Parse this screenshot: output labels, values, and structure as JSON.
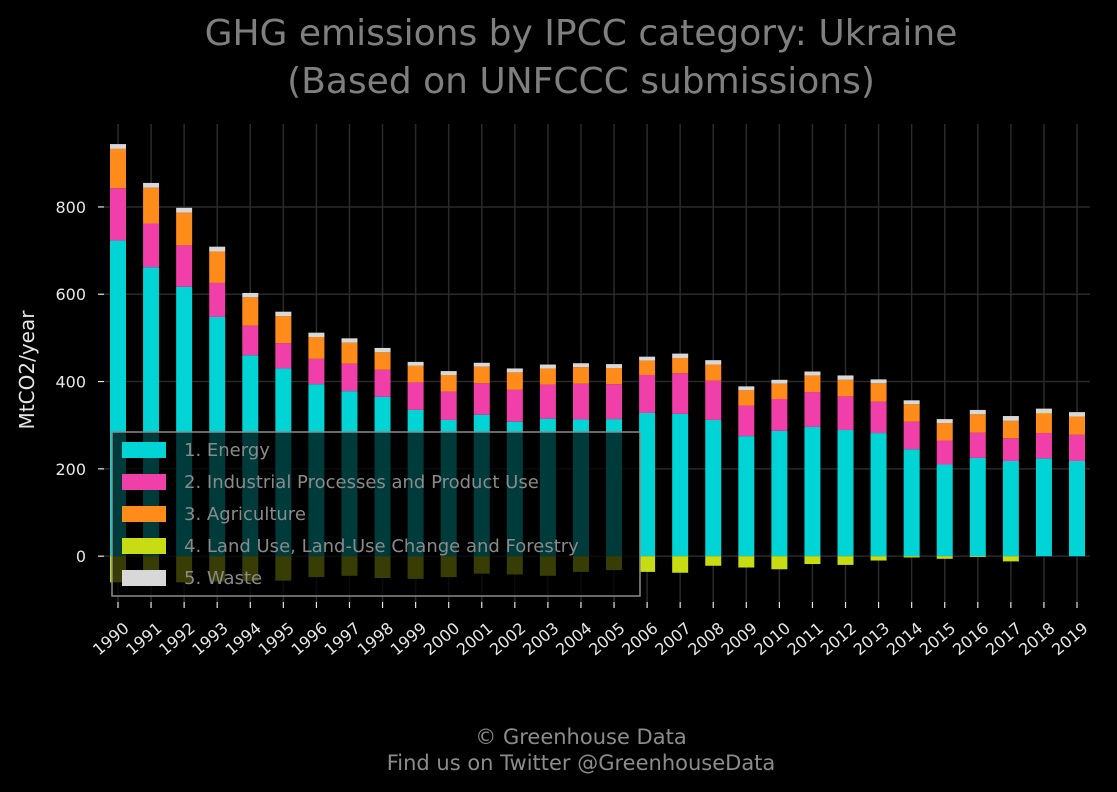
{
  "chart_data": {
    "type": "bar",
    "stacked": true,
    "title": "GHG emissions by IPCC category: Ukraine",
    "subtitle": "(Based on UNFCCC submissions)",
    "ylabel": "MtCO2/year",
    "xlabel": "",
    "ylim": [
      -105,
      990
    ],
    "yticks": [
      0,
      200,
      400,
      600,
      800
    ],
    "grid": true,
    "legend_position": "lower-left",
    "categories": [
      "1990",
      "1991",
      "1992",
      "1993",
      "1994",
      "1995",
      "1996",
      "1997",
      "1998",
      "1999",
      "2000",
      "2001",
      "2002",
      "2003",
      "2004",
      "2005",
      "2006",
      "2007",
      "2008",
      "2009",
      "2010",
      "2011",
      "2012",
      "2013",
      "2014",
      "2015",
      "2016",
      "2017",
      "2018",
      "2019"
    ],
    "series": [
      {
        "name": "1. Energy",
        "color": "#00d4d4",
        "values": [
          723,
          662,
          617,
          548,
          460,
          430,
          394,
          378,
          365,
          335,
          312,
          324,
          308,
          315,
          313,
          314,
          328,
          326,
          312,
          275,
          287,
          296,
          289,
          282,
          245,
          210,
          225,
          218,
          224,
          218
        ]
      },
      {
        "name": "2. Industrial Processes and Product Use",
        "color": "#f03fa8",
        "values": [
          120,
          100,
          95,
          78,
          68,
          58,
          58,
          63,
          62,
          63,
          65,
          72,
          73,
          78,
          82,
          80,
          87,
          93,
          90,
          70,
          73,
          80,
          77,
          72,
          63,
          55,
          58,
          52,
          58,
          60
        ]
      },
      {
        "name": "3. Agriculture",
        "color": "#ff8c1a",
        "values": [
          90,
          82,
          75,
          72,
          65,
          62,
          50,
          48,
          40,
          38,
          38,
          38,
          40,
          37,
          38,
          37,
          33,
          35,
          37,
          35,
          35,
          38,
          38,
          42,
          40,
          40,
          42,
          40,
          45,
          42
        ]
      },
      {
        "name": "4. Land Use, Land-Use Change and Forestry",
        "color": "#c8dc14",
        "values": [
          -60,
          -62,
          -60,
          -58,
          -57,
          -56,
          -48,
          -45,
          -50,
          -52,
          -48,
          -40,
          -42,
          -45,
          -36,
          -32,
          -36,
          -38,
          -22,
          -26,
          -30,
          -18,
          -20,
          -10,
          -3,
          -6,
          -2,
          -12,
          1,
          0
        ]
      },
      {
        "name": "5. Waste",
        "color": "#d8d8d8",
        "values": [
          11,
          11,
          11,
          11,
          10,
          10,
          10,
          10,
          10,
          9,
          9,
          9,
          9,
          9,
          9,
          9,
          9,
          10,
          10,
          9,
          9,
          9,
          10,
          9,
          9,
          9,
          10,
          11,
          10,
          10
        ]
      }
    ]
  },
  "footer": {
    "line1": "© Greenhouse Data",
    "line2": "Find us on Twitter @GreenhouseData"
  }
}
